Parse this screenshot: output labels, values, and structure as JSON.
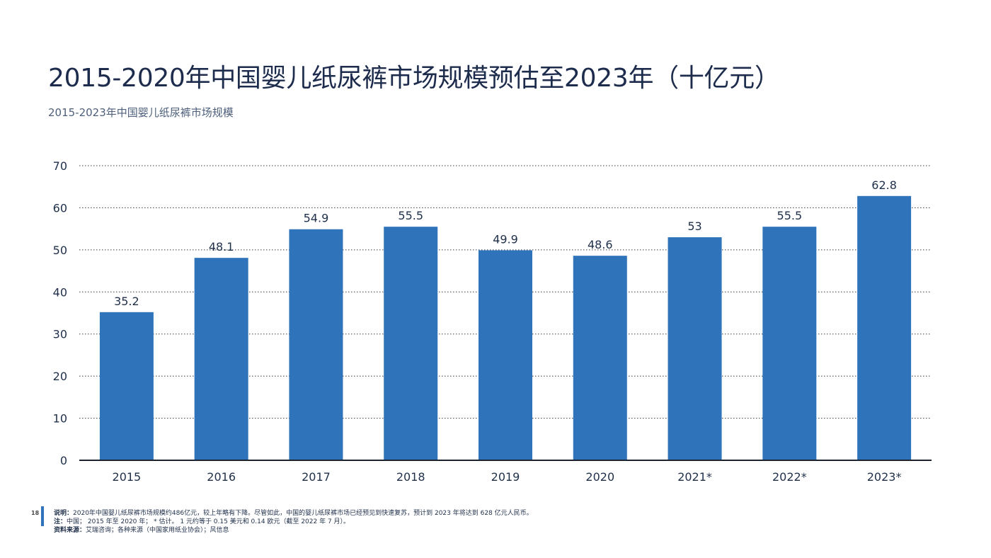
{
  "page": {
    "title": "2015-2020年中国婴儿纸尿裤市场规模预估至2023年（十亿元）",
    "subtitle": "2015-2023年中国婴儿纸尿裤市场规模",
    "page_number": "18"
  },
  "notes": {
    "description_label": "说明：",
    "description_text": "2020年中国婴儿纸尿裤市场规模约486亿元，较上年略有下降。尽管如此，中国的婴儿纸尿裤市场已经预见到快速复苏，预计到 2023 年将达到 628 亿元人民币。",
    "note_label": "注：",
    "note_text": "中国； 2015 年至 2020 年；  * 估计。 1 元约等于 0.15 美元和 0.14 欧元（截至 2022 年 7 月）。",
    "source_label": "资料来源：",
    "source_text": "艾瑞咨询；各种来源（中国家用纸业协会）；风信息"
  },
  "colors": {
    "bar": "#2f74ba",
    "grid": "#343a44",
    "axis": "#1d2430",
    "text": "#1f2f4a"
  },
  "chart_data": {
    "type": "bar",
    "title": "2015-2020年中国婴儿纸尿裤市场规模预估至2023年（十亿元）",
    "subtitle": "2015-2023年中国婴儿纸尿裤市场规模",
    "categories": [
      "2015",
      "2016",
      "2017",
      "2018",
      "2019",
      "2020",
      "2021*",
      "2022*",
      "2023*"
    ],
    "values": [
      35.2,
      48.1,
      54.9,
      55.5,
      49.9,
      48.6,
      53,
      55.5,
      62.8
    ],
    "value_labels": [
      "35.2",
      "48.1",
      "54.9",
      "55.5",
      "49.9",
      "48.6",
      "53",
      "55.5",
      "62.8"
    ],
    "yticks": [
      0,
      10,
      20,
      30,
      40,
      50,
      60,
      70
    ],
    "ylim": [
      0,
      70
    ],
    "xlabel": "",
    "ylabel": "",
    "grid": true,
    "legend": "none"
  }
}
